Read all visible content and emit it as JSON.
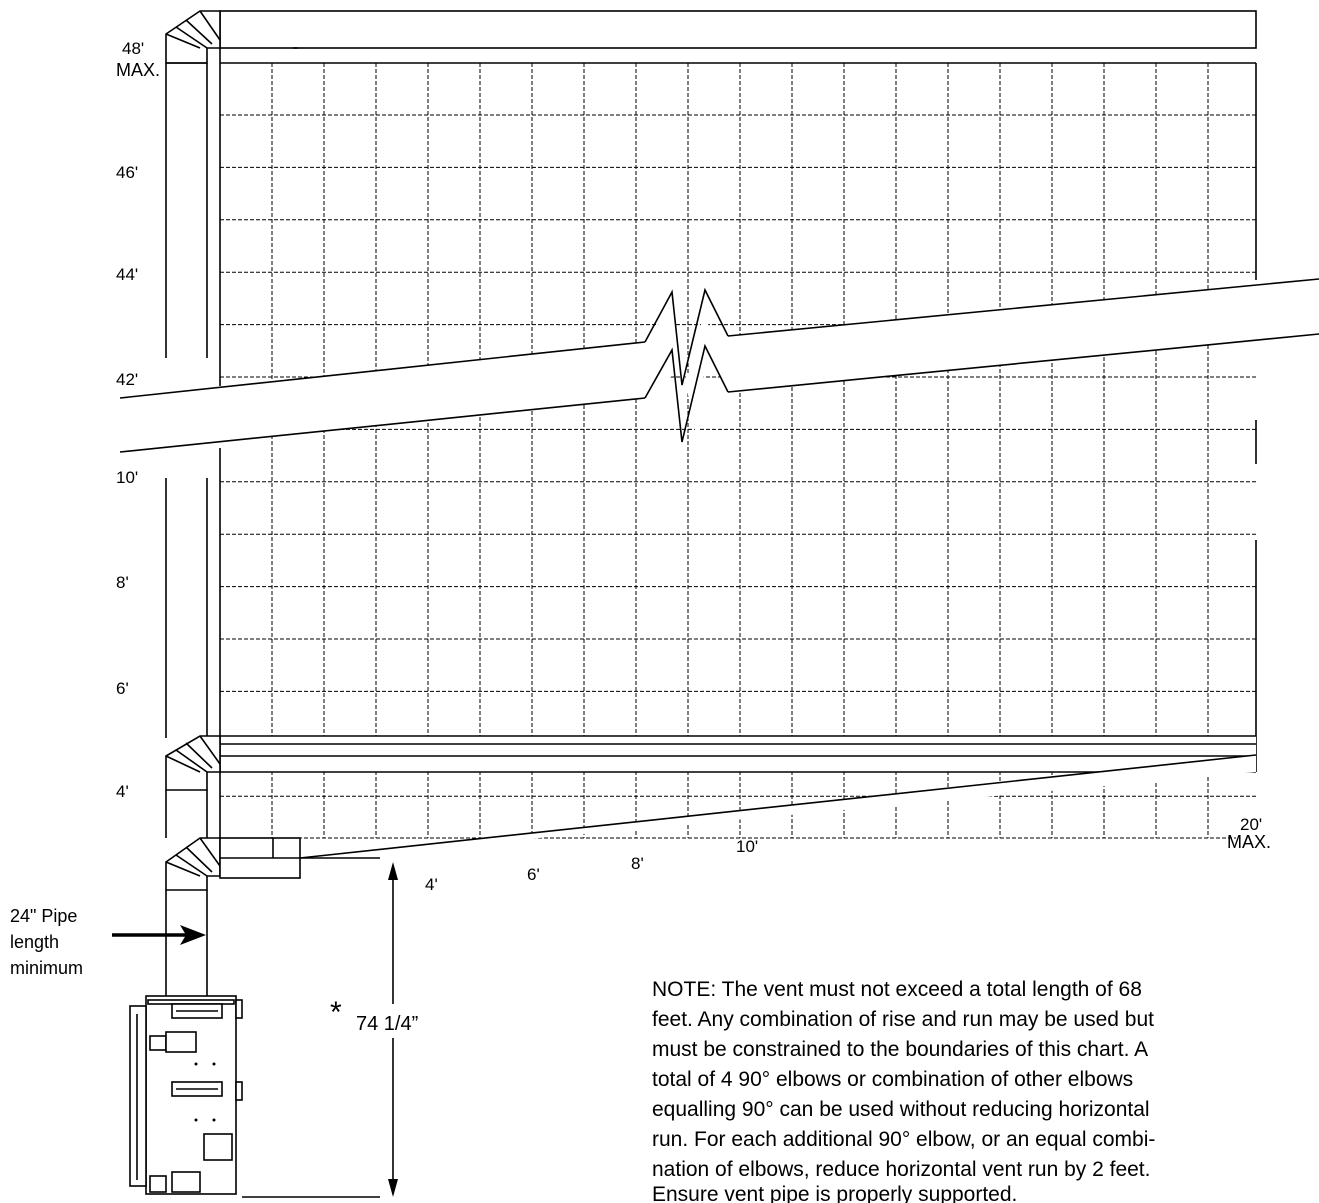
{
  "y_axis_labels": [
    {
      "top": "48'",
      "bottom": "MAX."
    },
    {
      "top": "46'"
    },
    {
      "top": "44'"
    },
    {
      "top": "42'"
    },
    {
      "top": "10'"
    },
    {
      "top": "8'"
    },
    {
      "top": "6'"
    },
    {
      "top": "4'"
    }
  ],
  "x_axis_labels": [
    {
      "top": "4'"
    },
    {
      "top": "6'"
    },
    {
      "top": "8'"
    },
    {
      "top": "10'"
    },
    {
      "top": "20'",
      "bottom": "MAX."
    }
  ],
  "pipe_callout": {
    "lines": [
      "24\" Pipe",
      "length",
      "minimum"
    ]
  },
  "height_dimension": {
    "asterisk": "*",
    "value": "74 1/4”"
  },
  "note": {
    "lines": [
      "NOTE:  The vent must not exceed a total length of 68",
      "feet.  Any combination of rise and run may be used but",
      "must be constrained to the boundaries of this chart.  A",
      "total of 4 90° elbows or combination of other elbows",
      "equalling 90° can be used without reducing horizontal",
      "run. For each additional 90° elbow, or an equal combi-",
      "nation of elbows, reduce horizontal vent run by 2 feet.",
      "Ensure vent pipe is properly supported."
    ]
  }
}
